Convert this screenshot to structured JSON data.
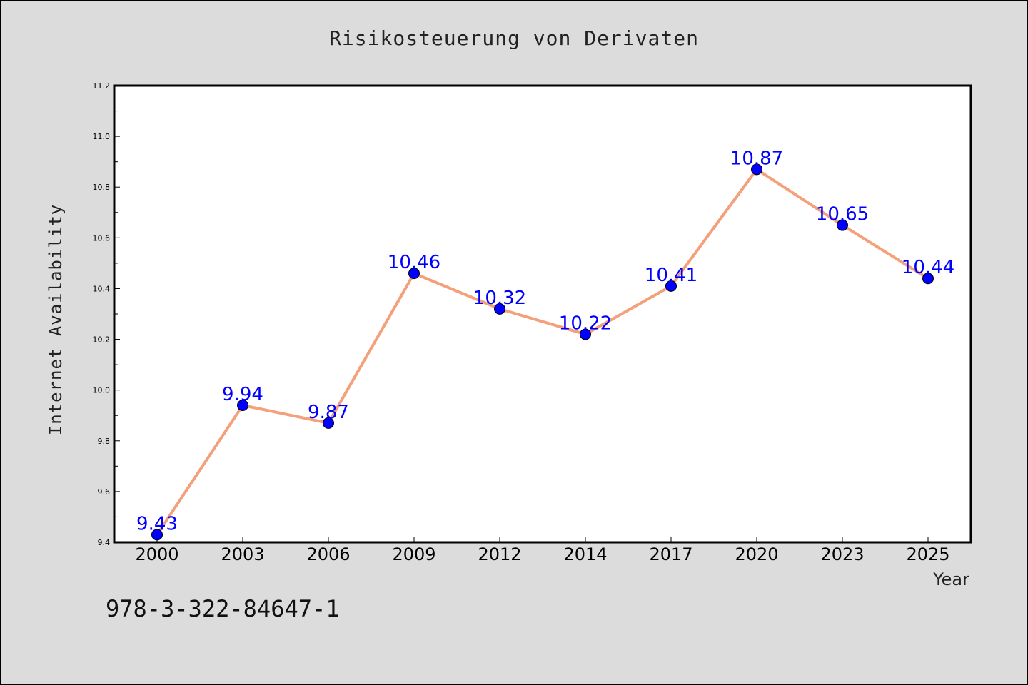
{
  "chart_data": {
    "type": "line",
    "title": "Risikosteuerung von Derivaten",
    "xlabel": "Year",
    "ylabel": "Internet Availability",
    "categories": [
      "2000",
      "2003",
      "2006",
      "2009",
      "2012",
      "2014",
      "2017",
      "2020",
      "2023",
      "2025"
    ],
    "series": [
      {
        "values": [
          9.43,
          9.94,
          9.87,
          10.46,
          10.32,
          10.22,
          10.41,
          10.87,
          10.65,
          10.44
        ]
      }
    ],
    "data_labels": [
      "9.43",
      "9.94",
      "9.87",
      "10.46",
      "10.32",
      "10.22",
      "10.41",
      "10.87",
      "10.65",
      "10.44"
    ],
    "ylim": [
      9.4,
      11.2
    ],
    "yticks": [
      "9.4",
      "9.6",
      "9.8",
      "10.0",
      "10.2",
      "10.4",
      "10.6",
      "10.8",
      "11.0",
      "11.2"
    ],
    "grid": false,
    "legend": "none",
    "colors": {
      "line": "#f4a07a",
      "marker": "#0000ff",
      "label": "#0000ff",
      "background": "#dcdcdc",
      "plot_background": "#ffffff"
    }
  },
  "footer_text": "978-3-322-84647-1"
}
